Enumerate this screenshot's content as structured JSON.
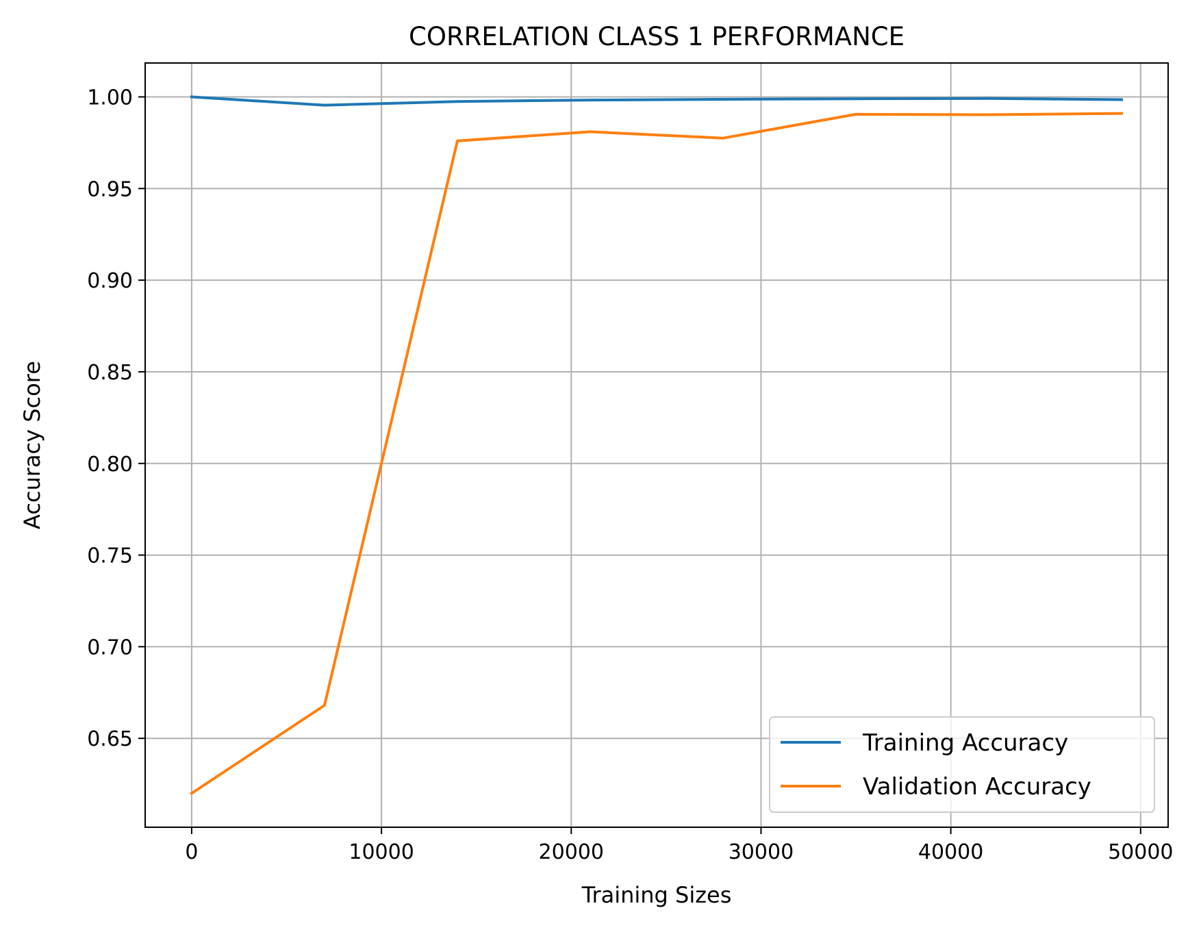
{
  "chart_data": {
    "type": "line",
    "title": "CORRELATION CLASS 1 PERFORMANCE",
    "xlabel": "Training Sizes",
    "ylabel": "Accuracy Score",
    "x": [
      0,
      7000,
      14000,
      21000,
      28000,
      35000,
      42000,
      49000
    ],
    "series": [
      {
        "name": "Training Accuracy",
        "color": "#1f77b4",
        "values": [
          1.0,
          0.9955,
          0.9975,
          0.9983,
          0.9987,
          0.999,
          0.9992,
          0.9985
        ]
      },
      {
        "name": "Validation Accuracy",
        "color": "#ff7f0e",
        "values": [
          0.62,
          0.668,
          0.976,
          0.981,
          0.9775,
          0.9905,
          0.9903,
          0.991
        ]
      }
    ],
    "xlim": [
      -2450,
      51450
    ],
    "ylim": [
      0.6015,
      1.0185
    ],
    "xticks": [
      0,
      10000,
      20000,
      30000,
      40000,
      50000
    ],
    "xtick_labels": [
      "0",
      "10000",
      "20000",
      "30000",
      "40000",
      "50000"
    ],
    "yticks": [
      0.65,
      0.7,
      0.75,
      0.8,
      0.85,
      0.9,
      0.95,
      1.0
    ],
    "ytick_labels": [
      "0.65",
      "0.70",
      "0.75",
      "0.80",
      "0.85",
      "0.90",
      "0.95",
      "1.00"
    ],
    "grid": true,
    "legend_position": "lower-right"
  }
}
